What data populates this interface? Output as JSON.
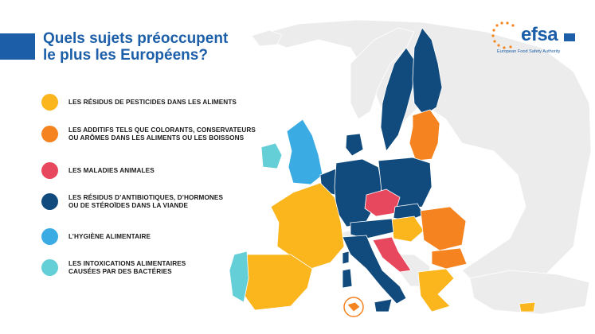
{
  "title": {
    "line1": "Quels sujets préoccupent",
    "line2": "le plus les Européens?"
  },
  "colors": {
    "title_bar": "#1c5fa8",
    "background_land": "#ececec",
    "pesticides": "#fbb51d",
    "additives": "#f58320",
    "animal_diseases": "#e8485e",
    "antibiotics": "#114b7d",
    "hygiene": "#3aace3",
    "intoxications": "#64cfd6"
  },
  "legend": [
    {
      "key": "pesticides",
      "lines": [
        "LES RÉSIDUS DE PESTICIDES DANS LES ALIMENTS"
      ]
    },
    {
      "key": "additives",
      "lines": [
        "LES ADDITIFS TELS QUE COLORANTS, CONSERVATEURS",
        "OU ARÔMES DANS LES ALIMENTS OU LES BOISSONS"
      ]
    },
    {
      "key": "animal_diseases",
      "lines": [
        "LES MALADIES ANIMALES"
      ]
    },
    {
      "key": "antibiotics",
      "lines": [
        "LES RÉSIDUS D’ANTIBIOTIQUES, D’HORMONES",
        "OU DE STÉROÏDES DANS LA VIANDE"
      ]
    },
    {
      "key": "hygiene",
      "lines": [
        "L’HYGIÈNE ALIMENTAIRE"
      ]
    },
    {
      "key": "intoxications",
      "lines": [
        "LES INTOXICATIONS ALIMENTAIRES",
        "CAUSÉES PAR DES BACTÉRIES"
      ]
    }
  ],
  "logo": {
    "word": "efsa",
    "subtitle": "European Food Safety Authority"
  }
}
